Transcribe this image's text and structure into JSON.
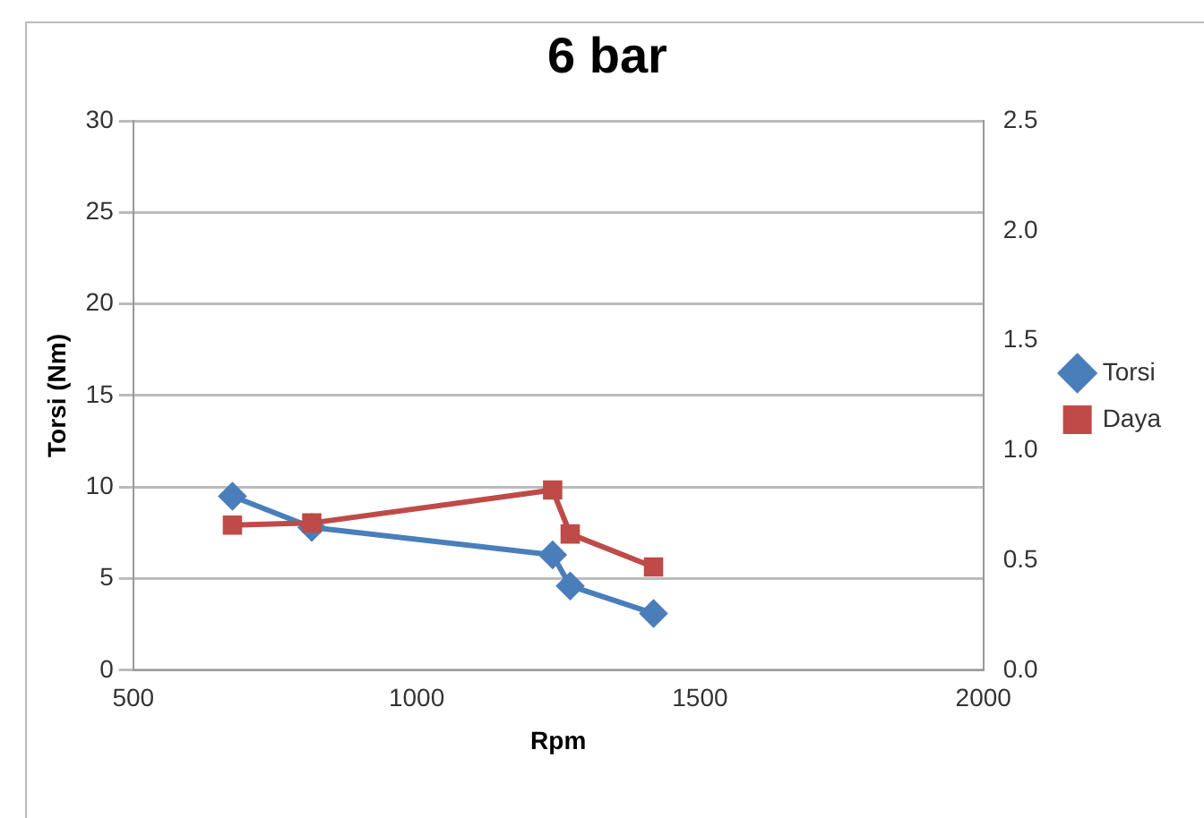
{
  "chart_data": {
    "type": "line",
    "title": "6 bar",
    "xlabel": "Rpm",
    "ylabel": "Torsi (Nm)",
    "xlim": [
      500,
      2000
    ],
    "xticks": [
      500,
      1000,
      1500,
      2000
    ],
    "ylim": [
      0,
      30
    ],
    "yticks": [
      0,
      5,
      10,
      15,
      20,
      25,
      30
    ],
    "y2lim": [
      0,
      2.5
    ],
    "y2ticks": [
      {
        "value": 0,
        "label": "0.0"
      },
      {
        "value": 0.5,
        "label": "0.5"
      },
      {
        "value": 1,
        "label": "1.0"
      },
      {
        "value": 1.5,
        "label": "1.5"
      },
      {
        "value": 2,
        "label": "2.0"
      },
      {
        "value": 2.5,
        "label": "2.5"
      }
    ],
    "grid": "y",
    "legend": "right",
    "series": [
      {
        "name": "Torsi",
        "color": "#4a7ebb",
        "marker": "diamond",
        "x": [
          675,
          815,
          1240,
          1271,
          1418
        ],
        "values": [
          9.5,
          7.8,
          6.3,
          4.6,
          3.1
        ]
      },
      {
        "name": "Daya",
        "color": "#be4b48",
        "marker": "square",
        "axis": "y2",
        "x": [
          675,
          815,
          1240,
          1271,
          1418
        ],
        "values": [
          0.66,
          0.67,
          0.82,
          0.62,
          0.47
        ]
      }
    ]
  }
}
